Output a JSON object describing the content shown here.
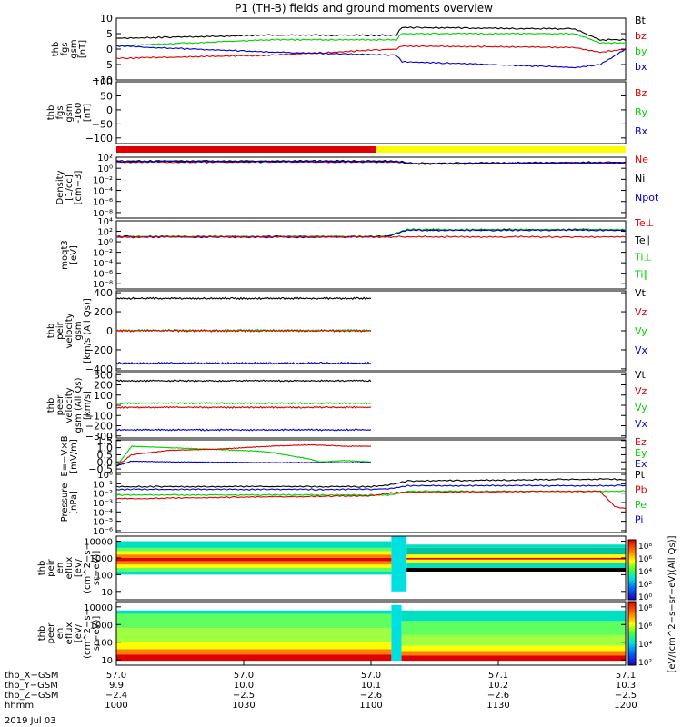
{
  "title": "P1 (TH-B) fields and ground moments overview",
  "date": "2019 Jul 03",
  "colors": {
    "black": "#000000",
    "red": "#e00000",
    "green": "#00d000",
    "blue": "#0000d0",
    "yellow": "#ffff00",
    "cyan": "#00e0e0"
  },
  "chart_data": [
    {
      "type": "line",
      "ylabel_lines": [
        "thb",
        "fgs",
        "gsm",
        "[nT]"
      ],
      "ylim": [
        -10,
        10
      ],
      "yticks": [
        "10",
        "5",
        "0",
        "−5",
        "−10"
      ],
      "ytick_values": [
        10,
        5,
        0,
        -5,
        -10
      ],
      "legend": [
        {
          "name": "Bt",
          "color": "#000000"
        },
        {
          "name": "bz",
          "color": "#e00000"
        },
        {
          "name": "by",
          "color": "#00d000"
        },
        {
          "name": "bx",
          "color": "#0000d0"
        }
      ],
      "series": [
        {
          "name": "Bt",
          "color": "#000000",
          "x": [
            0,
            0.3,
            0.55,
            0.56,
            0.9,
            0.95,
            1
          ],
          "y": [
            3.5,
            4.5,
            4.5,
            7,
            6.5,
            3,
            3
          ]
        },
        {
          "name": "bz",
          "color": "#e00000",
          "x": [
            0,
            0.3,
            0.55,
            0.56,
            0.9,
            0.95,
            1
          ],
          "y": [
            -3,
            -2,
            0,
            1,
            0.5,
            -1,
            0
          ]
        },
        {
          "name": "by",
          "color": "#00d000",
          "x": [
            0,
            0.3,
            0.55,
            0.56,
            0.9,
            0.95,
            1
          ],
          "y": [
            1,
            3,
            3,
            5,
            5,
            2,
            2
          ]
        },
        {
          "name": "bx",
          "color": "#0000d0",
          "x": [
            0,
            0.3,
            0.55,
            0.56,
            0.9,
            0.95,
            1
          ],
          "y": [
            1,
            -1,
            -2,
            -4,
            -6,
            -5,
            0
          ]
        }
      ]
    },
    {
      "type": "line",
      "ylabel_lines": [
        "thb",
        "fgs",
        "gsm",
        "-160",
        "[nT]"
      ],
      "ylim": [
        -120,
        100
      ],
      "yticks": [
        "100",
        "50",
        "0",
        "−50",
        "−100"
      ],
      "ytick_values": [
        100,
        50,
        0,
        -50,
        -100
      ],
      "legend": [
        {
          "name": "Bz",
          "color": "#e00000"
        },
        {
          "name": "By",
          "color": "#00d000"
        },
        {
          "name": "Bx",
          "color": "#0000d0"
        }
      ],
      "series": []
    },
    {
      "type": "line",
      "ylabel_lines": [
        "Density",
        "[1/cc]",
        "[cm−3]"
      ],
      "log": true,
      "ylim": [
        -9,
        2
      ],
      "yticks": [
        "10²",
        "10⁰",
        "10⁻²",
        "10⁻⁴",
        "10⁻⁶",
        "10⁻⁸"
      ],
      "ytick_values": [
        2,
        0,
        -2,
        -4,
        -6,
        -8
      ],
      "legend": [
        {
          "name": "Ne",
          "color": "#e00000"
        },
        {
          "name": "Ni",
          "color": "#000000"
        },
        {
          "name": "Npot",
          "color": "#0000d0"
        }
      ],
      "series": [
        {
          "name": "Ni",
          "color": "#000000",
          "x": [
            0,
            0.55,
            0.58,
            1
          ],
          "y": [
            1.3,
            1.3,
            0.9,
            1.1
          ]
        },
        {
          "name": "Ne",
          "color": "#e00000",
          "x": [
            0,
            0.55,
            0.58,
            1
          ],
          "y": [
            1.1,
            1.1,
            0.8,
            0.9
          ]
        },
        {
          "name": "Npot",
          "color": "#0000d0",
          "x": [
            0,
            0.55,
            0.58,
            1
          ],
          "y": [
            1.2,
            1.2,
            0.8,
            1
          ]
        }
      ]
    },
    {
      "type": "line",
      "ylabel_lines": [
        "moqt3",
        "[eV]"
      ],
      "log": true,
      "ylim": [
        -9,
        4
      ],
      "yticks": [
        "10⁴",
        "10²",
        "10⁰",
        "10⁻²",
        "10⁻⁴",
        "10⁻⁶",
        "10⁻⁸"
      ],
      "ytick_values": [
        4,
        2,
        0,
        -2,
        -4,
        -6,
        -8
      ],
      "legend": [
        {
          "name": "Te⊥",
          "color": "#e00000"
        },
        {
          "name": "Te∥",
          "color": "#000000"
        },
        {
          "name": "Ti⊥",
          "color": "#00d000"
        },
        {
          "name": "Ti∥",
          "color": "#00d000"
        }
      ],
      "series": [
        {
          "name": "Te∥",
          "color": "#000000",
          "x": [
            0,
            0.53,
            0.57,
            1
          ],
          "y": [
            1,
            1,
            2.3,
            2.3
          ]
        },
        {
          "name": "Ti∥",
          "color": "#00d000",
          "x": [
            0,
            0.53,
            0.57,
            1
          ],
          "y": [
            1,
            1,
            2.3,
            2.3
          ]
        },
        {
          "name": "Ti⊥",
          "color": "#0000d0",
          "x": [
            0,
            0.53,
            0.57,
            1
          ],
          "y": [
            0.9,
            0.9,
            2.2,
            2.2
          ]
        },
        {
          "name": "Te⊥",
          "color": "#e00000",
          "x": [
            0,
            0.53,
            1
          ],
          "y": [
            0.95,
            0.95,
            0.95
          ]
        }
      ]
    },
    {
      "type": "line",
      "ylabel_lines": [
        "thb",
        "peir",
        "velocity",
        "gsm",
        "[km/s (All Qs)]"
      ],
      "ylim": [
        -420,
        420
      ],
      "yticks": [
        "400",
        "200",
        "0",
        "−200",
        "−400"
      ],
      "ytick_values": [
        400,
        200,
        0,
        -200,
        -400
      ],
      "legend": [
        {
          "name": "Vt",
          "color": "#000000"
        },
        {
          "name": "Vz",
          "color": "#e00000"
        },
        {
          "name": "Vy",
          "color": "#00d000"
        },
        {
          "name": "Vx",
          "color": "#0000d0"
        }
      ],
      "series": [
        {
          "name": "Vt",
          "color": "#000000",
          "x": [
            0,
            0.5
          ],
          "y": [
            340,
            340
          ]
        },
        {
          "name": "Vy",
          "color": "#00d000",
          "x": [
            0,
            0.5
          ],
          "y": [
            5,
            5
          ]
        },
        {
          "name": "Vz",
          "color": "#e00000",
          "x": [
            0,
            0.5
          ],
          "y": [
            0,
            0
          ]
        },
        {
          "name": "Vx",
          "color": "#0000d0",
          "x": [
            0,
            0.5
          ],
          "y": [
            -340,
            -340
          ]
        }
      ]
    },
    {
      "type": "line",
      "ylabel_lines": [
        "thb",
        "peer",
        "velocity",
        "gsm (All Qs)",
        "[km/s]"
      ],
      "ylim": [
        -320,
        320
      ],
      "yticks": [
        "300",
        "200",
        "100",
        "0",
        "−100",
        "−200",
        "−300"
      ],
      "ytick_values": [
        300,
        200,
        100,
        0,
        -100,
        -200,
        -300
      ],
      "legend": [
        {
          "name": "Vt",
          "color": "#000000"
        },
        {
          "name": "Vz",
          "color": "#e00000"
        },
        {
          "name": "Vy",
          "color": "#00d000"
        },
        {
          "name": "Vx",
          "color": "#0000d0"
        }
      ],
      "series": [
        {
          "name": "Vt",
          "color": "#000000",
          "x": [
            0,
            0.5
          ],
          "y": [
            240,
            240
          ]
        },
        {
          "name": "Vy",
          "color": "#00d000",
          "x": [
            0,
            0.5
          ],
          "y": [
            20,
            20
          ]
        },
        {
          "name": "Vz",
          "color": "#e00000",
          "x": [
            0,
            0.5
          ],
          "y": [
            -20,
            -20
          ]
        },
        {
          "name": "Vx",
          "color": "#0000d0",
          "x": [
            0,
            0.5
          ],
          "y": [
            -240,
            -240
          ]
        }
      ]
    },
    {
      "type": "line",
      "ylabel_lines": [
        "E=−V×B",
        "[mV/m]"
      ],
      "ylim": [
        -0.75,
        1.55
      ],
      "yticks": [
        "1.5",
        "1.0",
        "0.5",
        "0.0",
        "−0.5"
      ],
      "ytick_values": [
        1.5,
        1.0,
        0.5,
        0.0,
        -0.5
      ],
      "legend": [
        {
          "name": "Ez",
          "color": "#e00000"
        },
        {
          "name": "Ey",
          "color": "#00d000"
        },
        {
          "name": "Ex",
          "color": "#0000d0"
        }
      ],
      "series": [
        {
          "name": "Ey",
          "color": "#00d000",
          "x": [
            0,
            0.03,
            0.1,
            0.25,
            0.3,
            0.33,
            0.38,
            0.4,
            0.45,
            0.5
          ],
          "y": [
            -0.3,
            1.1,
            1.0,
            0.8,
            0.7,
            0.5,
            0.2,
            0.0,
            0.1,
            0.0
          ]
        },
        {
          "name": "Ez",
          "color": "#e00000",
          "x": [
            0,
            0.03,
            0.1,
            0.2,
            0.25,
            0.3,
            0.38,
            0.45,
            0.5
          ],
          "y": [
            -0.3,
            0.5,
            0.8,
            0.9,
            1.0,
            1.1,
            1.2,
            1.1,
            1.1
          ]
        },
        {
          "name": "Ex",
          "color": "#0000d0",
          "x": [
            0,
            0.03,
            0.1,
            0.3,
            0.5
          ],
          "y": [
            -0.3,
            0.05,
            0.0,
            -0.05,
            -0.05
          ]
        }
      ]
    },
    {
      "type": "line",
      "ylabel_lines": [
        "Pressure",
        "[nPa]"
      ],
      "log": true,
      "ylim": [
        -6.2,
        0.2
      ],
      "yticks": [
        "10⁰",
        "10⁻¹",
        "10⁻²",
        "10⁻³",
        "10⁻⁴",
        "10⁻⁵",
        "10⁻⁶"
      ],
      "ytick_values": [
        0,
        -1,
        -2,
        -3,
        -4,
        -5,
        -6
      ],
      "legend": [
        {
          "name": "Pt",
          "color": "#000000"
        },
        {
          "name": "Pb",
          "color": "#e00000"
        },
        {
          "name": "Pe",
          "color": "#00d000"
        },
        {
          "name": "Pi",
          "color": "#0000d0"
        }
      ],
      "series": [
        {
          "name": "Pt",
          "color": "#000000",
          "x": [
            0,
            0.5,
            0.54,
            0.57,
            0.97,
            1
          ],
          "y": [
            -1.3,
            -1.3,
            -1.1,
            -0.7,
            -0.5,
            -0.6
          ]
        },
        {
          "name": "Pi",
          "color": "#0000d0",
          "x": [
            0,
            0.5,
            0.54,
            0.57,
            1
          ],
          "y": [
            -1.6,
            -1.6,
            -1.5,
            -1.2,
            -1.2
          ]
        },
        {
          "name": "Pe",
          "color": "#00d000",
          "x": [
            0,
            0.5,
            0.54,
            0.57,
            1
          ],
          "y": [
            -2.2,
            -2.2,
            -2.2,
            -1.8,
            -1.8
          ]
        },
        {
          "name": "Pb",
          "color": "#e00000",
          "x": [
            0,
            0.3,
            0.5,
            0.55,
            0.95,
            0.98,
            1
          ],
          "y": [
            -2.6,
            -2.4,
            -2.3,
            -1.9,
            -1.8,
            -3.5,
            -3.6
          ]
        }
      ]
    },
    {
      "type": "heatmap",
      "ylabel_lines": [
        "thb",
        "peir",
        "en",
        "eflux",
        "[eV/",
        "(cm^2−s−",
        "sr−eV)]"
      ],
      "log": true,
      "ylim": [
        0.5,
        4.3
      ],
      "yticks": [
        "10000",
        "1000",
        "100",
        "10"
      ],
      "ytick_values": [
        4,
        3,
        2,
        1
      ]
    },
    {
      "type": "heatmap",
      "ylabel_lines": [
        "thb",
        "peer",
        "en",
        "eflux",
        "[eV/",
        "(cm^2−s−",
        "sr−eV)]"
      ],
      "log": true,
      "ylim": [
        0.7,
        4.3
      ],
      "yticks": [
        "10000",
        "1000",
        "100",
        "10"
      ],
      "ytick_values": [
        4,
        3,
        2,
        1
      ]
    }
  ],
  "colorbar": {
    "label": "[eV/(cm^2−s−sr−eV)(All Qs)]",
    "upper_ticks": [
      "10⁸",
      "10⁶",
      "10⁴",
      "10²",
      "10⁰"
    ],
    "lower_ticks": [
      "10⁸",
      "10⁶",
      "10⁴",
      "10²"
    ]
  },
  "x_axis": {
    "rows": [
      {
        "name": "thb_X−GSM",
        "values": [
          "57.0",
          "57.0",
          "57.0",
          "57.1",
          "57.1"
        ]
      },
      {
        "name": "thb_Y−GSM",
        "values": [
          "9.9",
          "10.0",
          "10.1",
          "10.2",
          "10.3"
        ]
      },
      {
        "name": "thb_Z−GSM",
        "values": [
          "−2.4",
          "−2.5",
          "−2.6",
          "−2.6",
          "−2.5"
        ]
      },
      {
        "name": "hhmm",
        "values": [
          "1000",
          "1030",
          "1100",
          "1130",
          "1200"
        ]
      }
    ]
  }
}
